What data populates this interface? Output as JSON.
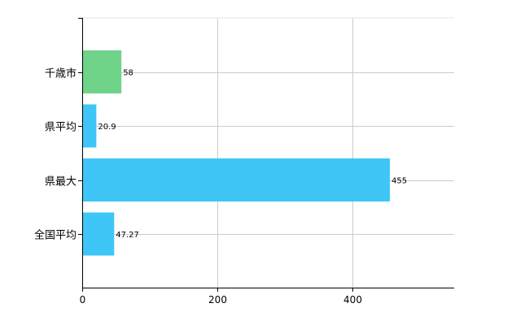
{
  "chart_data": {
    "type": "bar",
    "orientation": "horizontal",
    "categories": [
      "千歳市",
      "県平均",
      "県最大",
      "全国平均"
    ],
    "values": [
      58,
      20.9,
      455,
      47.27
    ],
    "value_labels": [
      "58",
      "20.9",
      "455",
      "47.27"
    ],
    "bar_colors": [
      "#6fd38a",
      "#3ec6f6",
      "#3ec6f6",
      "#3ec6f6"
    ],
    "xlim": [
      0,
      550
    ],
    "xticks": [
      0,
      200,
      400
    ],
    "grid": true,
    "title": "",
    "xlabel": "",
    "ylabel": ""
  },
  "colors": {
    "highlight": "#6fd38a",
    "bar": "#3ec6f6",
    "grid": "#cccccc",
    "axis": "#000000"
  }
}
